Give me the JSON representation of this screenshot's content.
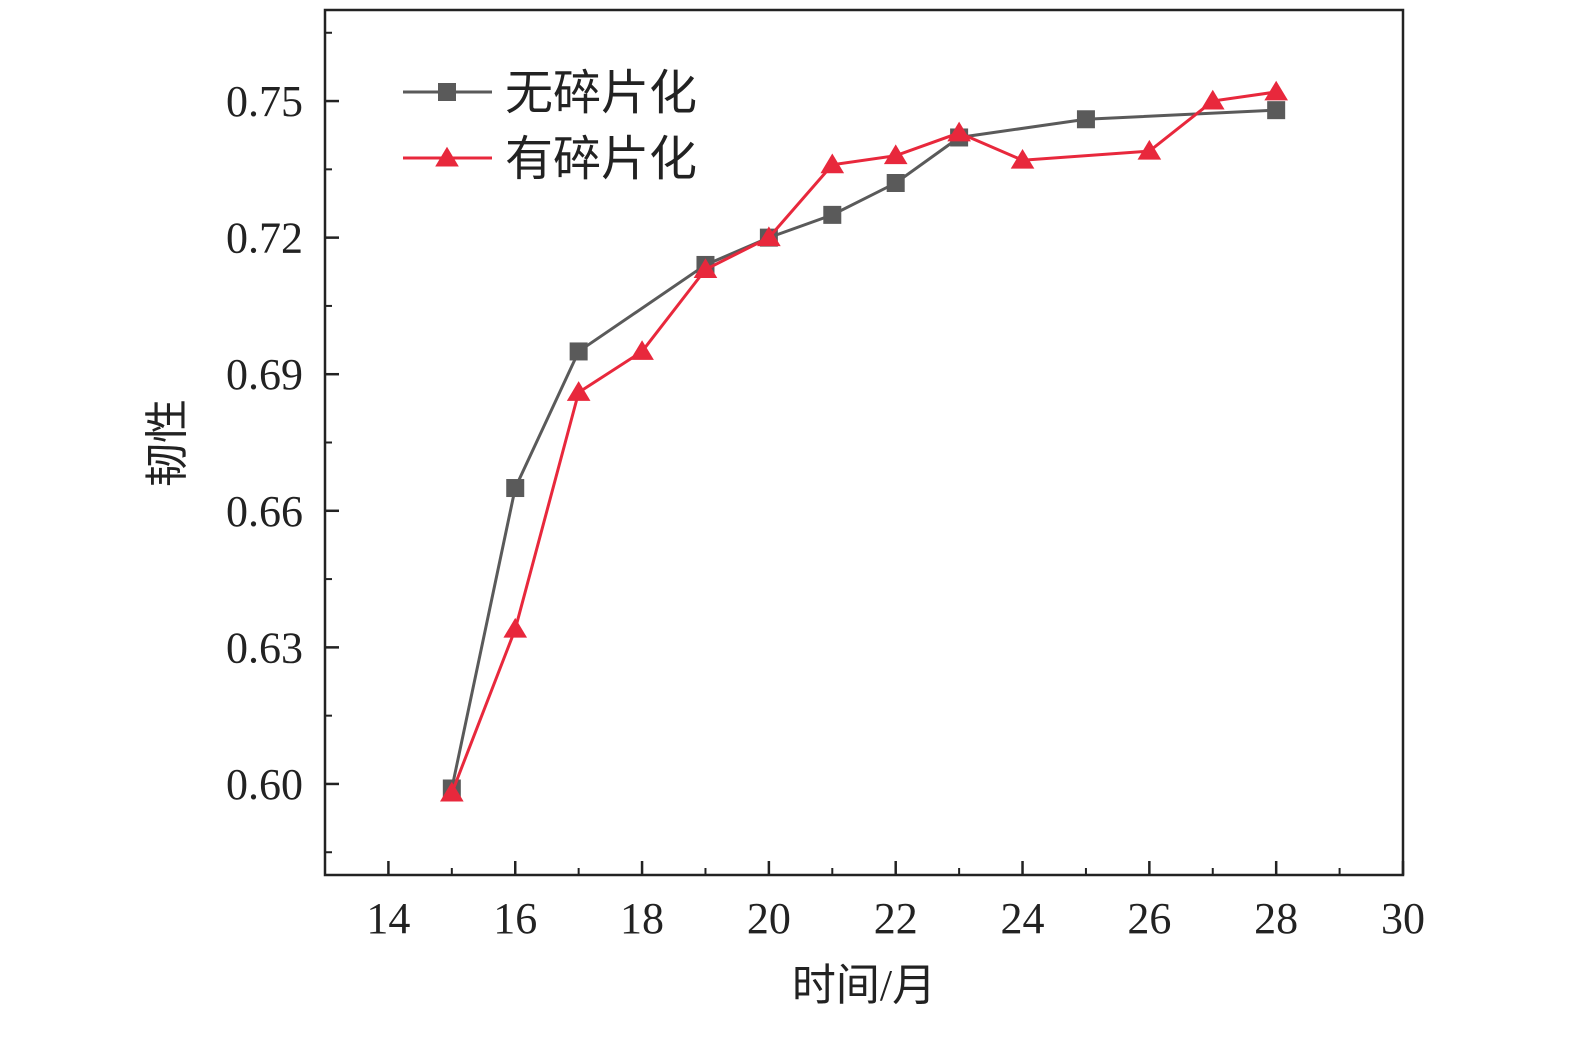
{
  "chart_data": {
    "type": "line",
    "xlabel": "时间/月",
    "ylabel": "韧性",
    "xlim": [
      13,
      30
    ],
    "ylim": [
      0.58,
      0.77
    ],
    "x_ticks": [
      14,
      16,
      18,
      20,
      22,
      24,
      26,
      28,
      30
    ],
    "y_ticks": [
      0.6,
      0.63,
      0.66,
      0.69,
      0.72,
      0.75
    ],
    "x_tick_labels": [
      "14",
      "16",
      "18",
      "20",
      "22",
      "24",
      "26",
      "28",
      "30"
    ],
    "y_tick_labels": [
      "0.60",
      "0.63",
      "0.66",
      "0.69",
      "0.72",
      "0.75"
    ],
    "grid": false,
    "legend_position": "top-left",
    "series": [
      {
        "name": "无碎片化",
        "color": "#5a5a5a",
        "marker": "square",
        "x": [
          15,
          16,
          17,
          19,
          20,
          21,
          22,
          23,
          25,
          28
        ],
        "y": [
          0.599,
          0.665,
          0.695,
          0.714,
          0.72,
          0.725,
          0.732,
          0.742,
          0.746,
          0.748
        ]
      },
      {
        "name": "有碎片化",
        "color": "#e8283c",
        "marker": "triangle",
        "x": [
          15,
          16,
          17,
          18,
          19,
          20,
          21,
          22,
          23,
          24,
          26,
          27,
          28
        ],
        "y": [
          0.598,
          0.634,
          0.686,
          0.695,
          0.713,
          0.72,
          0.736,
          0.738,
          0.743,
          0.737,
          0.739,
          0.75,
          0.752
        ]
      }
    ]
  }
}
